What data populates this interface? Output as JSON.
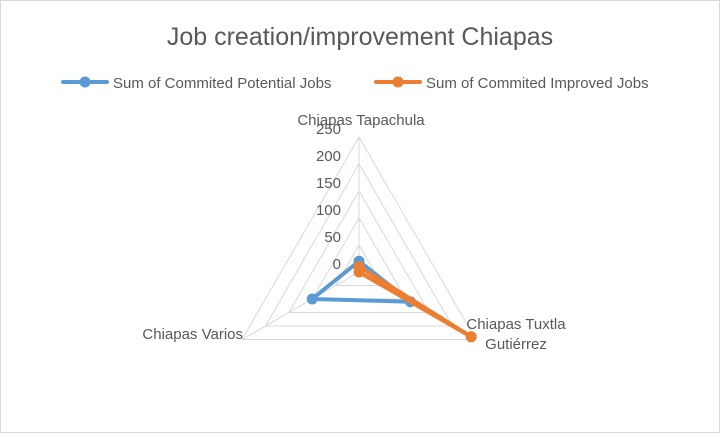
{
  "chart_data": {
    "type": "radar",
    "title": "Job creation/improvement Chiapas",
    "categories": [
      "Chiapas Tapachula",
      "Chiapas Tuxtla Gutiérrez",
      "Chiapas Varios"
    ],
    "category_label_lines": [
      [
        "Chiapas Tapachula"
      ],
      [
        "Chiapas Tuxtla",
        "Gutiérrez"
      ],
      [
        "Chiapas Varios"
      ]
    ],
    "radial_ticks": [
      "0",
      "50",
      "100",
      "150",
      "200",
      "250"
    ],
    "rmax": 250,
    "series": [
      {
        "name": "Sum of Commited Potential Jobs",
        "color": "#5b9bd5",
        "values": [
          20,
          110,
          100
        ]
      },
      {
        "name": "Sum of Commited Improved Jobs",
        "color": "#ed7d31",
        "values": [
          10,
          240,
          0
        ]
      }
    ],
    "legend_position": "top",
    "grid": true
  }
}
